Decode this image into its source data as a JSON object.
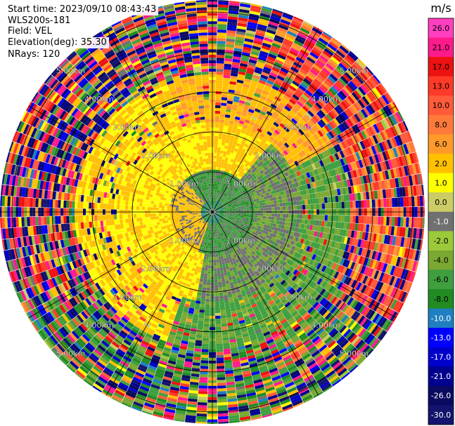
{
  "info": {
    "start_time": "Start time: 2023/09/10 08:43:43",
    "instrument": "WLS200s-181",
    "field": "Field: VEL",
    "elevation": "Elevation(deg): 35.30",
    "nrays": "NRays: 120"
  },
  "colorbar": {
    "unit": "m/s",
    "ticks": [
      "26.0",
      "21.0",
      "17.0",
      "13.0",
      "10.0",
      "8.0",
      "6.0",
      "2.0",
      "1.0",
      "0.0",
      "-1.0",
      "-2.0",
      "-4.0",
      "-6.0",
      "-8.0",
      "-10.0",
      "-13.0",
      "-17.0",
      "-21.0",
      "-26.0",
      "-30.0"
    ],
    "colors": [
      "#ff3fbf",
      "#ff1a8c",
      "#ee1111",
      "#ff3a28",
      "#ff5a3a",
      "#ff7a3a",
      "#ff9a2a",
      "#ffc000",
      "#ffff00",
      "#cccc66",
      "#707070",
      "#9cc93a",
      "#7aa832",
      "#3f9f3f",
      "#228b22",
      "#1f7fc0",
      "#0000ff",
      "#0000cc",
      "#000090",
      "#0a0a60",
      "#14146e"
    ]
  },
  "chart_data": {
    "type": "ppi",
    "field": "VEL",
    "units": "m/s",
    "nrays": 120,
    "elevation_deg": 35.3,
    "range_rings_km": [
      1.0,
      2.0,
      3.0,
      4.0,
      5.0
    ],
    "ring_labels": [
      "1.00km",
      "2.00km",
      "3.00km",
      "4.00km",
      "5.00km"
    ],
    "spoke_angles_deg": [
      0,
      30,
      60,
      90,
      120,
      150,
      180,
      210,
      240,
      270,
      300,
      330
    ],
    "vmin": -30.0,
    "vmax": 30.0
  }
}
